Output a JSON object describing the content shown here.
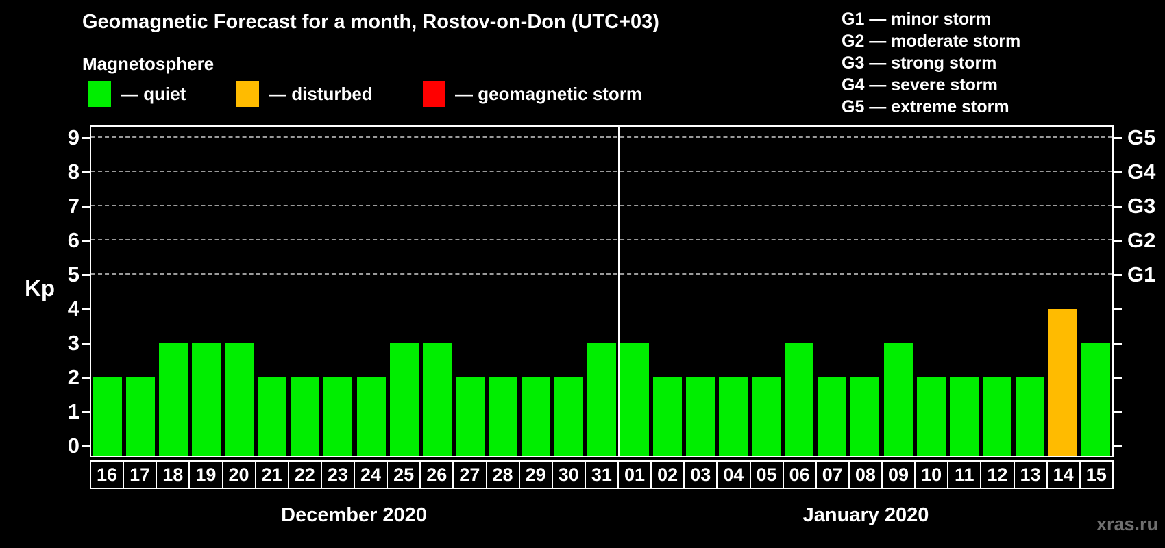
{
  "header": {
    "title": "Geomagnetic Forecast for a month, Rostov-on-Don (UTC+03)"
  },
  "legend": {
    "title": "Magnetosphere",
    "items": [
      {
        "label": "— quiet",
        "state": "quiet",
        "color": "#00ee00"
      },
      {
        "label": "— disturbed",
        "state": "disturbed",
        "color": "#ffbb00"
      },
      {
        "label": "— geomagnetic storm",
        "state": "storm",
        "color": "#ff0000"
      }
    ]
  },
  "g_legend": {
    "items": [
      "G1 — minor storm",
      "G2 — moderate storm",
      "G3 — strong storm",
      "G4 — severe storm",
      "G5 — extreme storm"
    ]
  },
  "watermark": "xras.ru",
  "chart_data": {
    "type": "bar",
    "title": "Geomagnetic Forecast for a month, Rostov-on-Don (UTC+03)",
    "ylabel": "Kp",
    "ylim": [
      0,
      9
    ],
    "kp_ticks": [
      0,
      1,
      2,
      3,
      4,
      5,
      6,
      7,
      8,
      9
    ],
    "grid_kp": [
      5,
      6,
      7,
      8,
      9
    ],
    "g_scale": [
      {
        "label": "G1",
        "kp": 5
      },
      {
        "label": "G2",
        "kp": 6
      },
      {
        "label": "G3",
        "kp": 7
      },
      {
        "label": "G4",
        "kp": 8
      },
      {
        "label": "G5",
        "kp": 9
      }
    ],
    "state_colors": {
      "quiet": "#00ee00",
      "disturbed": "#ffbb00",
      "storm": "#ff0000"
    },
    "months": [
      {
        "label": "December 2020",
        "bars": [
          {
            "day": "16",
            "kp": 2,
            "state": "quiet"
          },
          {
            "day": "17",
            "kp": 2,
            "state": "quiet"
          },
          {
            "day": "18",
            "kp": 3,
            "state": "quiet"
          },
          {
            "day": "19",
            "kp": 3,
            "state": "quiet"
          },
          {
            "day": "20",
            "kp": 3,
            "state": "quiet"
          },
          {
            "day": "21",
            "kp": 2,
            "state": "quiet"
          },
          {
            "day": "22",
            "kp": 2,
            "state": "quiet"
          },
          {
            "day": "23",
            "kp": 2,
            "state": "quiet"
          },
          {
            "day": "24",
            "kp": 2,
            "state": "quiet"
          },
          {
            "day": "25",
            "kp": 3,
            "state": "quiet"
          },
          {
            "day": "26",
            "kp": 3,
            "state": "quiet"
          },
          {
            "day": "27",
            "kp": 2,
            "state": "quiet"
          },
          {
            "day": "28",
            "kp": 2,
            "state": "quiet"
          },
          {
            "day": "29",
            "kp": 2,
            "state": "quiet"
          },
          {
            "day": "30",
            "kp": 2,
            "state": "quiet"
          },
          {
            "day": "31",
            "kp": 3,
            "state": "quiet"
          }
        ]
      },
      {
        "label": "January 2020",
        "bars": [
          {
            "day": "01",
            "kp": 3,
            "state": "quiet"
          },
          {
            "day": "02",
            "kp": 2,
            "state": "quiet"
          },
          {
            "day": "03",
            "kp": 2,
            "state": "quiet"
          },
          {
            "day": "04",
            "kp": 2,
            "state": "quiet"
          },
          {
            "day": "05",
            "kp": 2,
            "state": "quiet"
          },
          {
            "day": "06",
            "kp": 3,
            "state": "quiet"
          },
          {
            "day": "07",
            "kp": 2,
            "state": "quiet"
          },
          {
            "day": "08",
            "kp": 2,
            "state": "quiet"
          },
          {
            "day": "09",
            "kp": 3,
            "state": "quiet"
          },
          {
            "day": "10",
            "kp": 2,
            "state": "quiet"
          },
          {
            "day": "11",
            "kp": 2,
            "state": "quiet"
          },
          {
            "day": "12",
            "kp": 2,
            "state": "quiet"
          },
          {
            "day": "13",
            "kp": 2,
            "state": "quiet"
          },
          {
            "day": "14",
            "kp": 4,
            "state": "disturbed"
          },
          {
            "day": "15",
            "kp": 3,
            "state": "quiet"
          }
        ]
      }
    ]
  }
}
